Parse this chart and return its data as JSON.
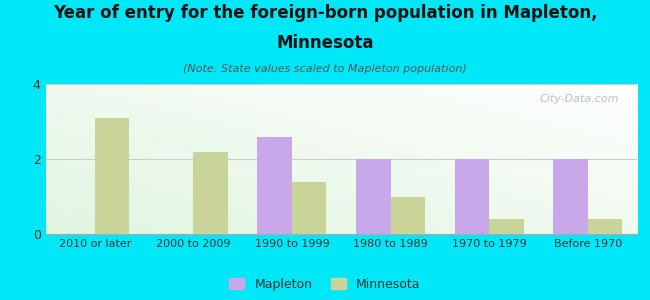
{
  "title_line1": "Year of entry for the foreign-born population in Mapleton,",
  "title_line2": "Minnesota",
  "subtitle": "(Note: State values scaled to Mapleton population)",
  "categories": [
    "2010 or later",
    "2000 to 2009",
    "1990 to 1999",
    "1980 to 1989",
    "1970 to 1979",
    "Before 1970"
  ],
  "mapleton_values": [
    0,
    0,
    2.6,
    2.0,
    2.0,
    2.0
  ],
  "minnesota_values": [
    3.1,
    2.2,
    1.4,
    1.0,
    0.4,
    0.4
  ],
  "mapleton_color": "#c8a8e8",
  "minnesota_color": "#c8d498",
  "background_outer": "#00e8f8",
  "ylim": [
    0,
    4
  ],
  "yticks": [
    0,
    2,
    4
  ],
  "bar_width": 0.35,
  "watermark": "City-Data.com",
  "legend_mapleton": "Mapleton",
  "legend_minnesota": "Minnesota",
  "title_fontsize": 12,
  "subtitle_fontsize": 8,
  "tick_fontsize": 8
}
